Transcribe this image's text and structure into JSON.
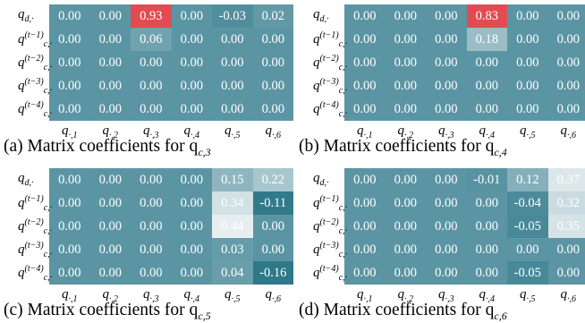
{
  "colors": {
    "base": "#5b95a3",
    "dark": "#2e7888",
    "light": "#e6eef0",
    "high": "#e34b52"
  },
  "chart_data": [
    {
      "type": "heatmap",
      "caption": "(a) Matrix coefficients for q",
      "caption_sub": "c,3",
      "row_labels": [
        {
          "base": "q",
          "sub": "d,·",
          "sup": ""
        },
        {
          "base": "q",
          "sub": "c,·",
          "sup": "(t−1)"
        },
        {
          "base": "q",
          "sub": "c,·",
          "sup": "(t−2)"
        },
        {
          "base": "q",
          "sub": "c,·",
          "sup": "(t−3)"
        },
        {
          "base": "q",
          "sub": "c,·",
          "sup": "(t−4)"
        }
      ],
      "col_labels": [
        {
          "base": "q",
          "sub": "·,1"
        },
        {
          "base": "q",
          "sub": "·,2"
        },
        {
          "base": "q",
          "sub": "·,3"
        },
        {
          "base": "q",
          "sub": "·,4"
        },
        {
          "base": "q",
          "sub": "·,5"
        },
        {
          "base": "q",
          "sub": "·,6"
        }
      ],
      "values": [
        [
          "0.00",
          "0.00",
          "0.93",
          "0.00",
          "-0.03",
          "0.02"
        ],
        [
          "0.00",
          "0.00",
          "0.06",
          "0.00",
          "0.00",
          "0.00"
        ],
        [
          "0.00",
          "0.00",
          "0.00",
          "0.00",
          "0.00",
          "0.00"
        ],
        [
          "0.00",
          "0.00",
          "0.00",
          "0.00",
          "0.00",
          "0.00"
        ],
        [
          "0.00",
          "0.00",
          "0.00",
          "0.00",
          "0.00",
          "0.00"
        ]
      ]
    },
    {
      "type": "heatmap",
      "caption": "(b) Matrix coefficients for q",
      "caption_sub": "c,4",
      "row_labels": [
        {
          "base": "q",
          "sub": "d,·",
          "sup": ""
        },
        {
          "base": "q",
          "sub": "c,·",
          "sup": "(t−1)"
        },
        {
          "base": "q",
          "sub": "c,·",
          "sup": "(t−2)"
        },
        {
          "base": "q",
          "sub": "c,·",
          "sup": "(t−3)"
        },
        {
          "base": "q",
          "sub": "c,·",
          "sup": "(t−4)"
        }
      ],
      "col_labels": [
        {
          "base": "q",
          "sub": "·,1"
        },
        {
          "base": "q",
          "sub": "·,2"
        },
        {
          "base": "q",
          "sub": "·,3"
        },
        {
          "base": "q",
          "sub": "·,4"
        },
        {
          "base": "q",
          "sub": "·,5"
        },
        {
          "base": "q",
          "sub": "·,6"
        }
      ],
      "values": [
        [
          "0.00",
          "0.00",
          "0.00",
          "0.83",
          "0.00",
          "0.00"
        ],
        [
          "0.00",
          "0.00",
          "0.00",
          "0.18",
          "0.00",
          "0.00"
        ],
        [
          "0.00",
          "0.00",
          "0.00",
          "0.00",
          "0.00",
          "0.00"
        ],
        [
          "0.00",
          "0.00",
          "0.00",
          "0.00",
          "0.00",
          "0.00"
        ],
        [
          "0.00",
          "0.00",
          "0.00",
          "0.00",
          "0.00",
          "0.00"
        ]
      ]
    },
    {
      "type": "heatmap",
      "caption": "(c) Matrix coefficients for q",
      "caption_sub": "c,5",
      "row_labels": [
        {
          "base": "q",
          "sub": "d,·",
          "sup": ""
        },
        {
          "base": "q",
          "sub": "c,·",
          "sup": "(t−1)"
        },
        {
          "base": "q",
          "sub": "c,·",
          "sup": "(t−2)"
        },
        {
          "base": "q",
          "sub": "c,·",
          "sup": "(t−3)"
        },
        {
          "base": "q",
          "sub": "c,·",
          "sup": "(t−4)"
        }
      ],
      "col_labels": [
        {
          "base": "q",
          "sub": "·,1"
        },
        {
          "base": "q",
          "sub": "·,2"
        },
        {
          "base": "q",
          "sub": "·,3"
        },
        {
          "base": "q",
          "sub": "·,4"
        },
        {
          "base": "q",
          "sub": "·,5"
        },
        {
          "base": "q",
          "sub": "·,6"
        }
      ],
      "values": [
        [
          "0.00",
          "0.00",
          "0.00",
          "0.00",
          "0.15",
          "0.22"
        ],
        [
          "0.00",
          "0.00",
          "0.00",
          "0.00",
          "0.34",
          "-0.11"
        ],
        [
          "0.00",
          "0.00",
          "0.00",
          "0.00",
          "0.44",
          "0.00"
        ],
        [
          "0.00",
          "0.00",
          "0.00",
          "0.00",
          "0.03",
          "0.00"
        ],
        [
          "0.00",
          "0.00",
          "0.00",
          "0.00",
          "0.04",
          "-0.16"
        ]
      ]
    },
    {
      "type": "heatmap",
      "caption": "(d) Matrix coefficients for q",
      "caption_sub": "c,6",
      "row_labels": [
        {
          "base": "q",
          "sub": "d,·",
          "sup": ""
        },
        {
          "base": "q",
          "sub": "c,·",
          "sup": "(t−1)"
        },
        {
          "base": "q",
          "sub": "c,·",
          "sup": "(t−2)"
        },
        {
          "base": "q",
          "sub": "c,·",
          "sup": "(t−3)"
        },
        {
          "base": "q",
          "sub": "c,·",
          "sup": "(t−4)"
        }
      ],
      "col_labels": [
        {
          "base": "q",
          "sub": "·,1"
        },
        {
          "base": "q",
          "sub": "·,2"
        },
        {
          "base": "q",
          "sub": "·,3"
        },
        {
          "base": "q",
          "sub": "·,4"
        },
        {
          "base": "q",
          "sub": "·,5"
        },
        {
          "base": "q",
          "sub": "·,6"
        }
      ],
      "values": [
        [
          "0.00",
          "0.00",
          "0.00",
          "-0.01",
          "0.12",
          "0.37"
        ],
        [
          "0.00",
          "0.00",
          "0.00",
          "0.00",
          "-0.04",
          "0.32"
        ],
        [
          "0.00",
          "0.00",
          "0.00",
          "0.00",
          "-0.05",
          "0.35"
        ],
        [
          "0.00",
          "0.00",
          "0.00",
          "0.00",
          "0.00",
          "0.00"
        ],
        [
          "0.00",
          "0.00",
          "0.00",
          "0.00",
          "-0.05",
          "0.00"
        ]
      ]
    }
  ]
}
